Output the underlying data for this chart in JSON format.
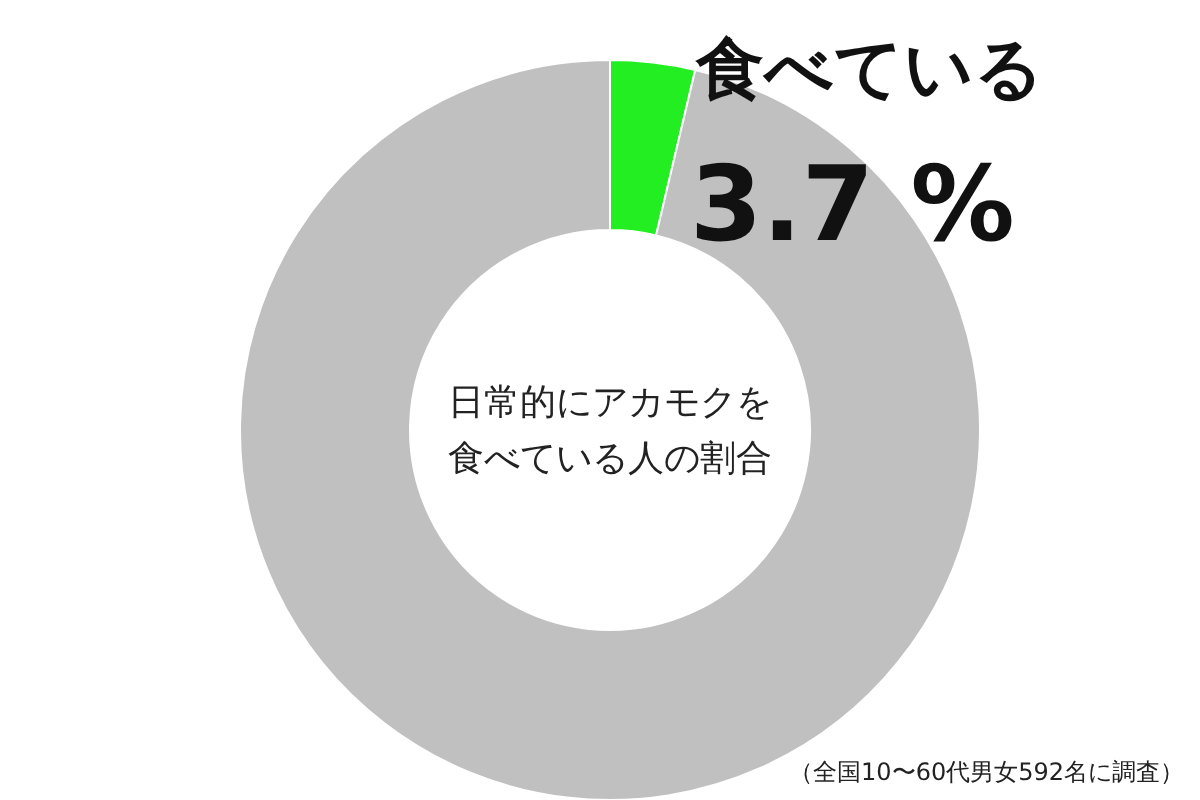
{
  "chart_data": {
    "type": "donut",
    "title": "日常的にアカモクを食べている人の割合",
    "categories": [
      "食べている",
      null
    ],
    "values": [
      3.7,
      96.3
    ],
    "colors": [
      "#22ee22",
      "#c0c0c0"
    ],
    "value_labels": [
      "3.7 %",
      null
    ],
    "legend": false,
    "annotations": [
      "（全国10〜60代男女592名に調査）"
    ]
  }
}
